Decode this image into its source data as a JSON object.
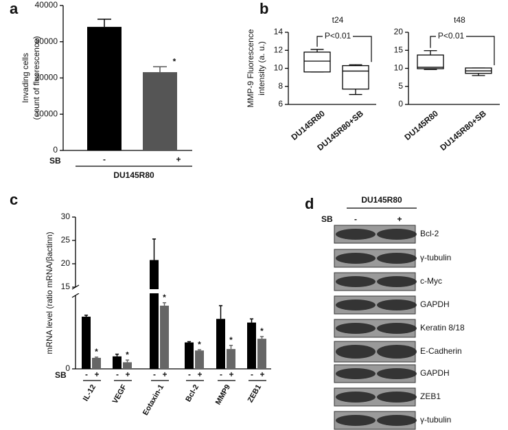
{
  "chart_data": [
    {
      "type": "bar",
      "panel": "a",
      "y_label": [
        "Invading cells",
        "(count of fluorescence)"
      ],
      "categories": [
        "-",
        "+"
      ],
      "x_label_row": "SB",
      "group_label": "DU145R80",
      "values": [
        34100,
        21600
      ],
      "errors": [
        2100,
        1500
      ],
      "colors": [
        "#000000",
        "#555555"
      ],
      "significance": [
        null,
        "*"
      ],
      "ylim": [
        0,
        40000
      ],
      "yticks": [
        0,
        10000,
        20000,
        30000,
        40000
      ]
    },
    {
      "type": "box",
      "panel": "b",
      "title": "t24",
      "y_label": [
        "MMP-9 Fluorescence",
        "intensity (a. u.)"
      ],
      "categories": [
        "DU145R80",
        "DU145R80+SB"
      ],
      "boxes": [
        {
          "min": 9.6,
          "q1": 9.6,
          "median": 10.8,
          "q3": 11.8,
          "max": 12.1
        },
        {
          "min": 7.1,
          "q1": 7.7,
          "median": 9.7,
          "q3": 10.3,
          "max": 10.4
        }
      ],
      "annotation": "P<0.01",
      "ylim": [
        6,
        14
      ],
      "yticks": [
        6,
        8,
        10,
        12,
        14
      ]
    },
    {
      "type": "box",
      "title": "t48",
      "categories": [
        "DU145R80",
        "DU145R80+SB"
      ],
      "boxes": [
        {
          "min": 9.7,
          "q1": 9.9,
          "median": 10.3,
          "q3": 13.7,
          "max": 14.9
        },
        {
          "min": 8.0,
          "q1": 8.6,
          "median": 9.3,
          "q3": 10.1,
          "max": 10.1
        }
      ],
      "annotation": "P<0.01",
      "ylim": [
        0,
        20
      ],
      "yticks": [
        0,
        5,
        10,
        15,
        20
      ]
    },
    {
      "type": "bar",
      "panel": "c",
      "y_label": "mRNA level (ratio mRNA/βactinn)",
      "categories": [
        "IL-12",
        "VEGF",
        "Eotaxin-1",
        "Bcl-2",
        "MMP9",
        "ZEB1"
      ],
      "x_label_row": "SB",
      "lanes": [
        "-",
        "+"
      ],
      "series": [
        {
          "color": "#000000",
          "values": [
            7.1,
            1.7,
            20.8,
            3.6,
            6.8,
            6.3
          ],
          "errors": [
            0.2,
            0.3,
            4.5,
            0.1,
            1.8,
            0.5
          ]
        },
        {
          "color": "#666666",
          "values": [
            1.5,
            0.9,
            8.6,
            2.5,
            2.7,
            4.1
          ],
          "errors": [
            0.1,
            0.3,
            0.4,
            0.1,
            0.5,
            0.3
          ],
          "significance": [
            "*",
            "*",
            "*",
            "*",
            "*",
            "*"
          ]
        }
      ],
      "ylim": [
        0,
        30
      ],
      "yticks": [
        0,
        15,
        20,
        25,
        30
      ],
      "y_break": [
        10,
        15
      ]
    }
  ],
  "western_blot": {
    "panel": "d",
    "group": "DU145R80",
    "row_label": "SB",
    "lanes": [
      "-",
      "+"
    ],
    "bands": [
      "Bcl-2",
      "γ-tubulin",
      "c-Myc",
      "GAPDH",
      "Keratin 8/18",
      "E-Cadherin",
      "GAPDH",
      "ZEB1",
      "γ-tubulin"
    ]
  }
}
